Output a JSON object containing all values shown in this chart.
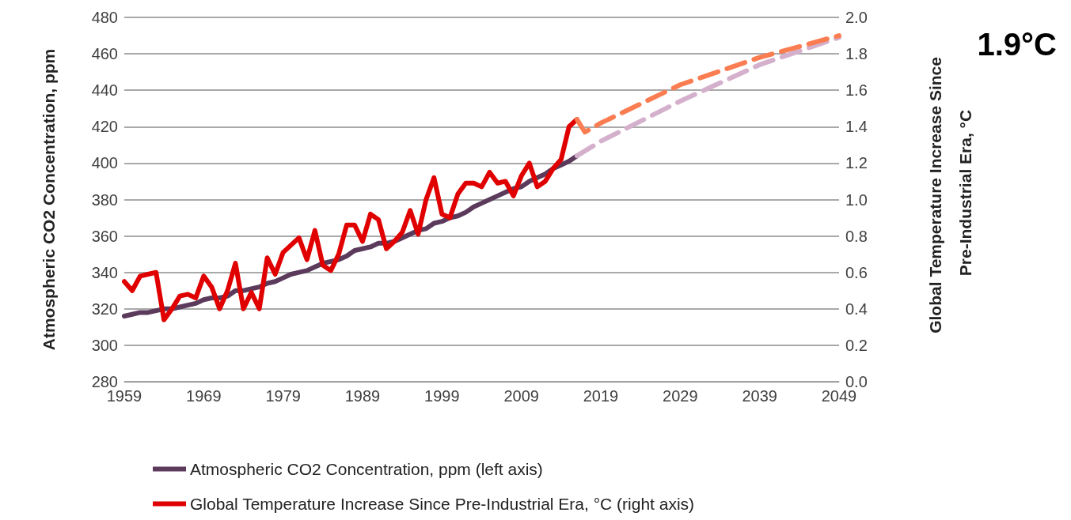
{
  "chart_data": {
    "type": "line",
    "xlim": [
      1959,
      2049
    ],
    "xticks": [
      1959,
      1969,
      1979,
      1989,
      1999,
      2009,
      2019,
      2029,
      2039,
      2049
    ],
    "ylabel": "Atmospheric CO2 Concentration, ppm",
    "ylim": [
      280,
      480
    ],
    "yticks": [
      280,
      300,
      320,
      340,
      360,
      380,
      400,
      420,
      440,
      460,
      480
    ],
    "y2label": "Global Temperature Increase Since Pre-Industrial Era, °C",
    "y2lim": [
      0,
      2
    ],
    "y2ticks": [
      {
        "value": 0,
        "label": "0.0"
      },
      {
        "value": 0.2,
        "label": "0.2"
      },
      {
        "value": 0.4,
        "label": "0.4"
      },
      {
        "value": 0.6,
        "label": "0.6"
      },
      {
        "value": 0.8,
        "label": "0.8"
      },
      {
        "value": 1,
        "label": "1.0"
      },
      {
        "value": 1.2,
        "label": "1.2"
      },
      {
        "value": 1.4,
        "label": "1.4"
      },
      {
        "value": 1.6,
        "label": "1.6"
      },
      {
        "value": 1.8,
        "label": "1.8"
      },
      {
        "value": 2,
        "label": "2.0"
      }
    ],
    "grid": "y",
    "legend": "bottom",
    "marker": "none",
    "annotations": [
      "1.9°C"
    ],
    "series": [
      {
        "name": "Atmospheric CO2 Concentration, ppm (left axis)",
        "color": "#5b3a5c",
        "line_style": "solid",
        "x": [
          1959,
          1960,
          1961,
          1962,
          1963,
          1964,
          1965,
          1966,
          1967,
          1968,
          1969,
          1970,
          1971,
          1972,
          1973,
          1974,
          1975,
          1976,
          1977,
          1978,
          1979,
          1980,
          1981,
          1982,
          1983,
          1984,
          1985,
          1986,
          1987,
          1988,
          1989,
          1990,
          1991,
          1992,
          1993,
          1994,
          1995,
          1996,
          1997,
          1998,
          1999,
          2000,
          2001,
          2002,
          2003,
          2004,
          2005,
          2006,
          2007,
          2008,
          2009,
          2010,
          2011,
          2012,
          2013,
          2014,
          2015,
          2016
        ],
        "values": [
          316,
          317,
          318,
          318,
          319,
          320,
          320,
          321,
          322,
          323,
          325,
          326,
          326,
          327,
          330,
          330,
          331,
          332,
          334,
          335,
          337,
          339,
          340,
          341,
          343,
          345,
          346,
          347,
          349,
          352,
          353,
          354,
          356,
          356,
          357,
          359,
          361,
          363,
          364,
          367,
          368,
          370,
          371,
          373,
          376,
          378,
          380,
          382,
          384,
          386,
          387,
          390,
          392,
          394,
          397,
          399,
          401,
          404
        ]
      },
      {
        "name": "Global Temperature Increase Since Pre-Industrial Era, °C (right axis)",
        "color": "#e00000",
        "line_style": "solid",
        "axis": "y2",
        "x": [
          1959,
          1960,
          1961,
          1962,
          1963,
          1964,
          1965,
          1966,
          1967,
          1968,
          1969,
          1970,
          1971,
          1972,
          1973,
          1974,
          1975,
          1976,
          1977,
          1978,
          1979,
          1980,
          1981,
          1982,
          1983,
          1984,
          1985,
          1986,
          1987,
          1988,
          1989,
          1990,
          1991,
          1992,
          1993,
          1994,
          1995,
          1996,
          1997,
          1998,
          1999,
          2000,
          2001,
          2002,
          2003,
          2004,
          2005,
          2006,
          2007,
          2008,
          2009,
          2010,
          2011,
          2012,
          2013,
          2014,
          2015,
          2016
        ],
        "values": [
          0.55,
          0.5,
          0.58,
          0.59,
          0.6,
          0.34,
          0.4,
          0.47,
          0.48,
          0.46,
          0.58,
          0.52,
          0.4,
          0.5,
          0.65,
          0.4,
          0.49,
          0.4,
          0.68,
          0.59,
          0.71,
          0.75,
          0.79,
          0.67,
          0.83,
          0.64,
          0.61,
          0.7,
          0.86,
          0.86,
          0.77,
          0.92,
          0.89,
          0.73,
          0.77,
          0.82,
          0.94,
          0.81,
          1.0,
          1.12,
          0.92,
          0.9,
          1.03,
          1.09,
          1.09,
          1.07,
          1.15,
          1.09,
          1.1,
          1.02,
          1.13,
          1.2,
          1.07,
          1.1,
          1.17,
          1.22,
          1.4,
          1.44
        ]
      },
      {
        "color": "#d4b0cc",
        "line_style": "dashed",
        "x": [
          2016,
          2019,
          2024,
          2029,
          2039,
          2049
        ],
        "values": [
          404,
          412,
          423,
          434,
          454,
          469
        ]
      },
      {
        "color": "#fa7d52",
        "line_style": "dashed",
        "axis": "y2",
        "x": [
          2016,
          2017,
          2019,
          2029,
          2039,
          2049
        ],
        "values": [
          1.44,
          1.37,
          1.42,
          1.63,
          1.78,
          1.9
        ]
      }
    ]
  }
}
